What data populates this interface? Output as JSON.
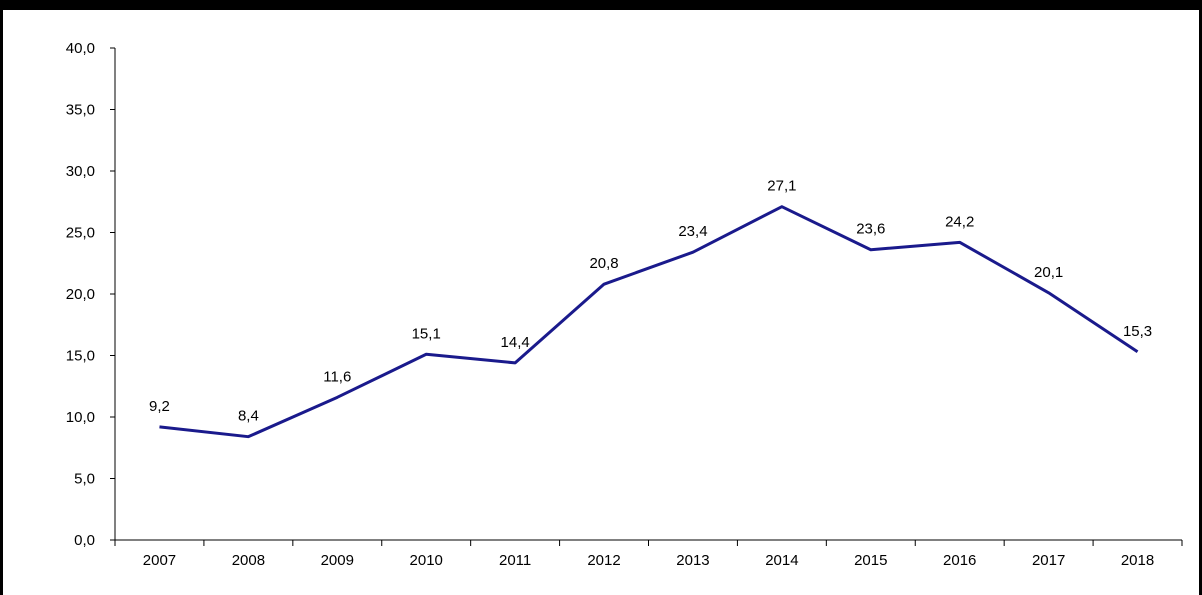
{
  "chart_data": {
    "type": "line",
    "categories": [
      "2007",
      "2008",
      "2009",
      "2010",
      "2011",
      "2012",
      "2013",
      "2014",
      "2015",
      "2016",
      "2017",
      "2018"
    ],
    "series": [
      {
        "values": [
          9.2,
          8.4,
          11.6,
          15.1,
          14.4,
          20.8,
          23.4,
          27.1,
          23.6,
          24.2,
          20.1,
          15.3
        ],
        "labels": [
          "9,2",
          "8,4",
          "11,6",
          "15,1",
          "14,4",
          "20,8",
          "23,4",
          "27,1",
          "23,6",
          "24,2",
          "20,1",
          "15,3"
        ],
        "color": "#1a1a8c"
      }
    ],
    "ylim": [
      0,
      40
    ],
    "yticks": [
      0,
      5,
      10,
      15,
      20,
      25,
      30,
      35,
      40
    ],
    "ytick_labels": [
      "0,0",
      "5,0",
      "10,0",
      "15,0",
      "20,0",
      "25,0",
      "30,0",
      "35,0",
      "40,0"
    ],
    "grid": false,
    "legend": "none"
  },
  "colors": {
    "line": "#1a1a8c",
    "axis": "#000000",
    "frame": "#000000"
  }
}
